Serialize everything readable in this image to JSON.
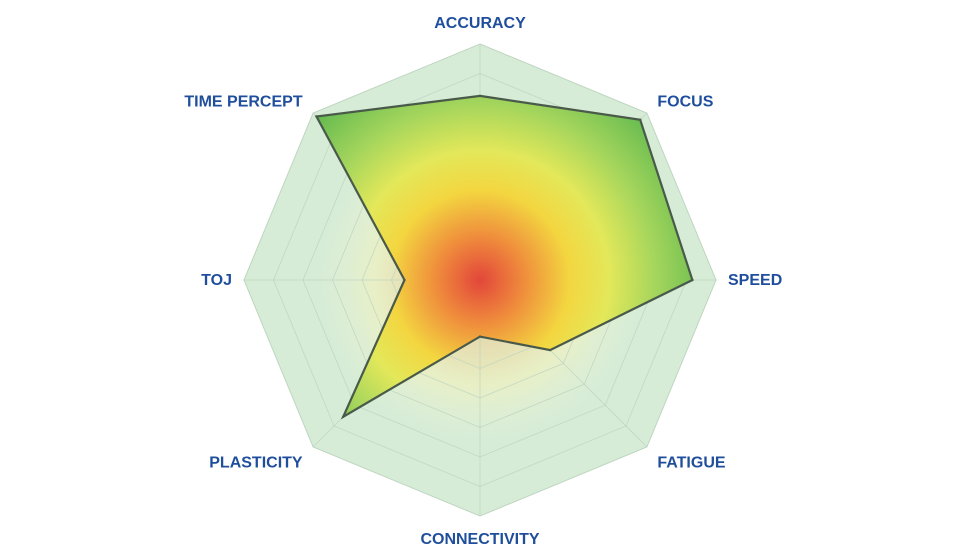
{
  "chart_data": {
    "type": "radar",
    "title": "",
    "axes": [
      "ACCURACY",
      "FOCUS",
      "SPEED",
      "FATIGUE",
      "CONNECTIVITY",
      "PLASTICITY",
      "TOJ",
      "TIME PERCEPT"
    ],
    "values": [
      0.78,
      0.96,
      0.9,
      0.42,
      0.24,
      0.82,
      0.32,
      0.98
    ],
    "range": [
      0,
      1
    ],
    "grid_levels": 8,
    "grid": true,
    "colors": {
      "label": "#1f4e9c",
      "outline": "#4a5a4a",
      "frame_fill": "#d6ecd6",
      "grid": "#bcd2bf",
      "gradient": [
        "#e2463a",
        "#ef8a3c",
        "#f3d640",
        "#e3e85a",
        "#a4d55c",
        "#5fb84f"
      ]
    }
  }
}
